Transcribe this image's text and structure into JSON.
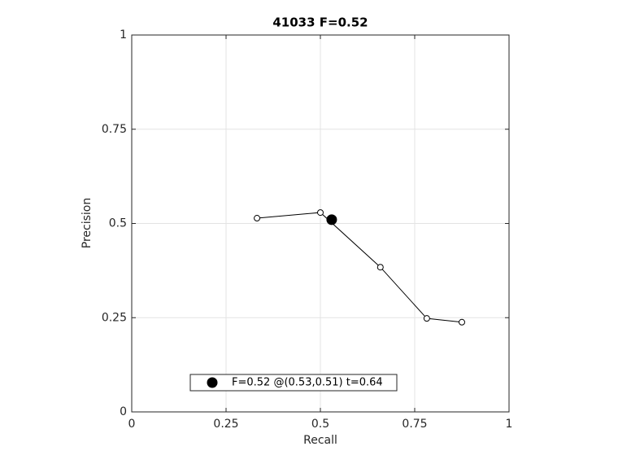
{
  "chart_data": {
    "type": "line",
    "title": "41033 F=0.52",
    "xlabel": "Recall",
    "ylabel": "Precision",
    "xlim": [
      0,
      1
    ],
    "ylim": [
      0,
      1
    ],
    "xticks": [
      0,
      0.25,
      0.5,
      0.75,
      1
    ],
    "yticks": [
      0,
      0.25,
      0.5,
      0.75,
      1
    ],
    "grid": true,
    "legend": "south",
    "series": [
      {
        "color": "#000000",
        "marker": "open-circle",
        "x": [
          0.332,
          0.5,
          0.659,
          0.782,
          0.875
        ],
        "y": [
          0.514,
          0.529,
          0.384,
          0.248,
          0.238
        ]
      },
      {
        "name": "F=0.52 @(0.53,0.51) t=0.64",
        "color": "#000000",
        "marker": "filled-circle",
        "x": [
          0.53
        ],
        "y": [
          0.51
        ]
      }
    ]
  }
}
